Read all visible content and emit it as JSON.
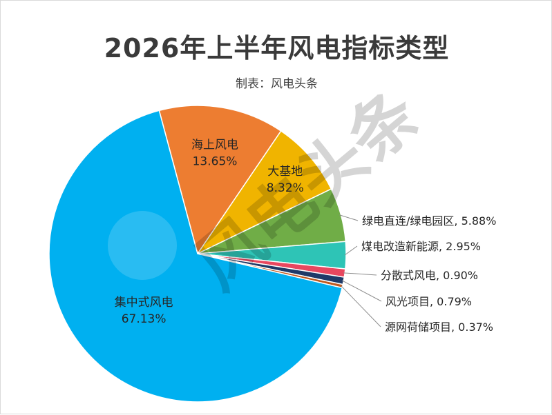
{
  "chart_data": {
    "type": "pie",
    "title": "2026年上半年风电指标类型",
    "subtitle": "制表：风电头条",
    "watermark": "风电头条",
    "slices": [
      {
        "label": "海上风电",
        "value": 13.65,
        "value_label": "13.65%",
        "color": "#ED7D31",
        "label_mode": "inside"
      },
      {
        "label": "大基地",
        "value": 8.32,
        "value_label": "8.32%",
        "color": "#F0B400",
        "label_mode": "inside"
      },
      {
        "label": "绿电直连/绿电园区",
        "value": 5.88,
        "value_label": "5.88%",
        "color": "#70AD47",
        "label_mode": "outside"
      },
      {
        "label": "煤电改造新能源",
        "value": 2.95,
        "value_label": "2.95%",
        "color": "#2EC4B6",
        "label_mode": "outside"
      },
      {
        "label": "分散式风电",
        "value": 0.9,
        "value_label": "0.90%",
        "color": "#E8475F",
        "label_mode": "outside"
      },
      {
        "label": "风光项目",
        "value": 0.79,
        "value_label": "0.79%",
        "color": "#1F3A68",
        "label_mode": "outside"
      },
      {
        "label": "源网荷储项目",
        "value": 0.37,
        "value_label": "0.37%",
        "color": "#C0591E",
        "label_mode": "outside"
      },
      {
        "label": "集中式风电",
        "value": 67.13,
        "value_label": "67.13%",
        "color": "#00B0F0",
        "label_mode": "inside"
      }
    ]
  }
}
